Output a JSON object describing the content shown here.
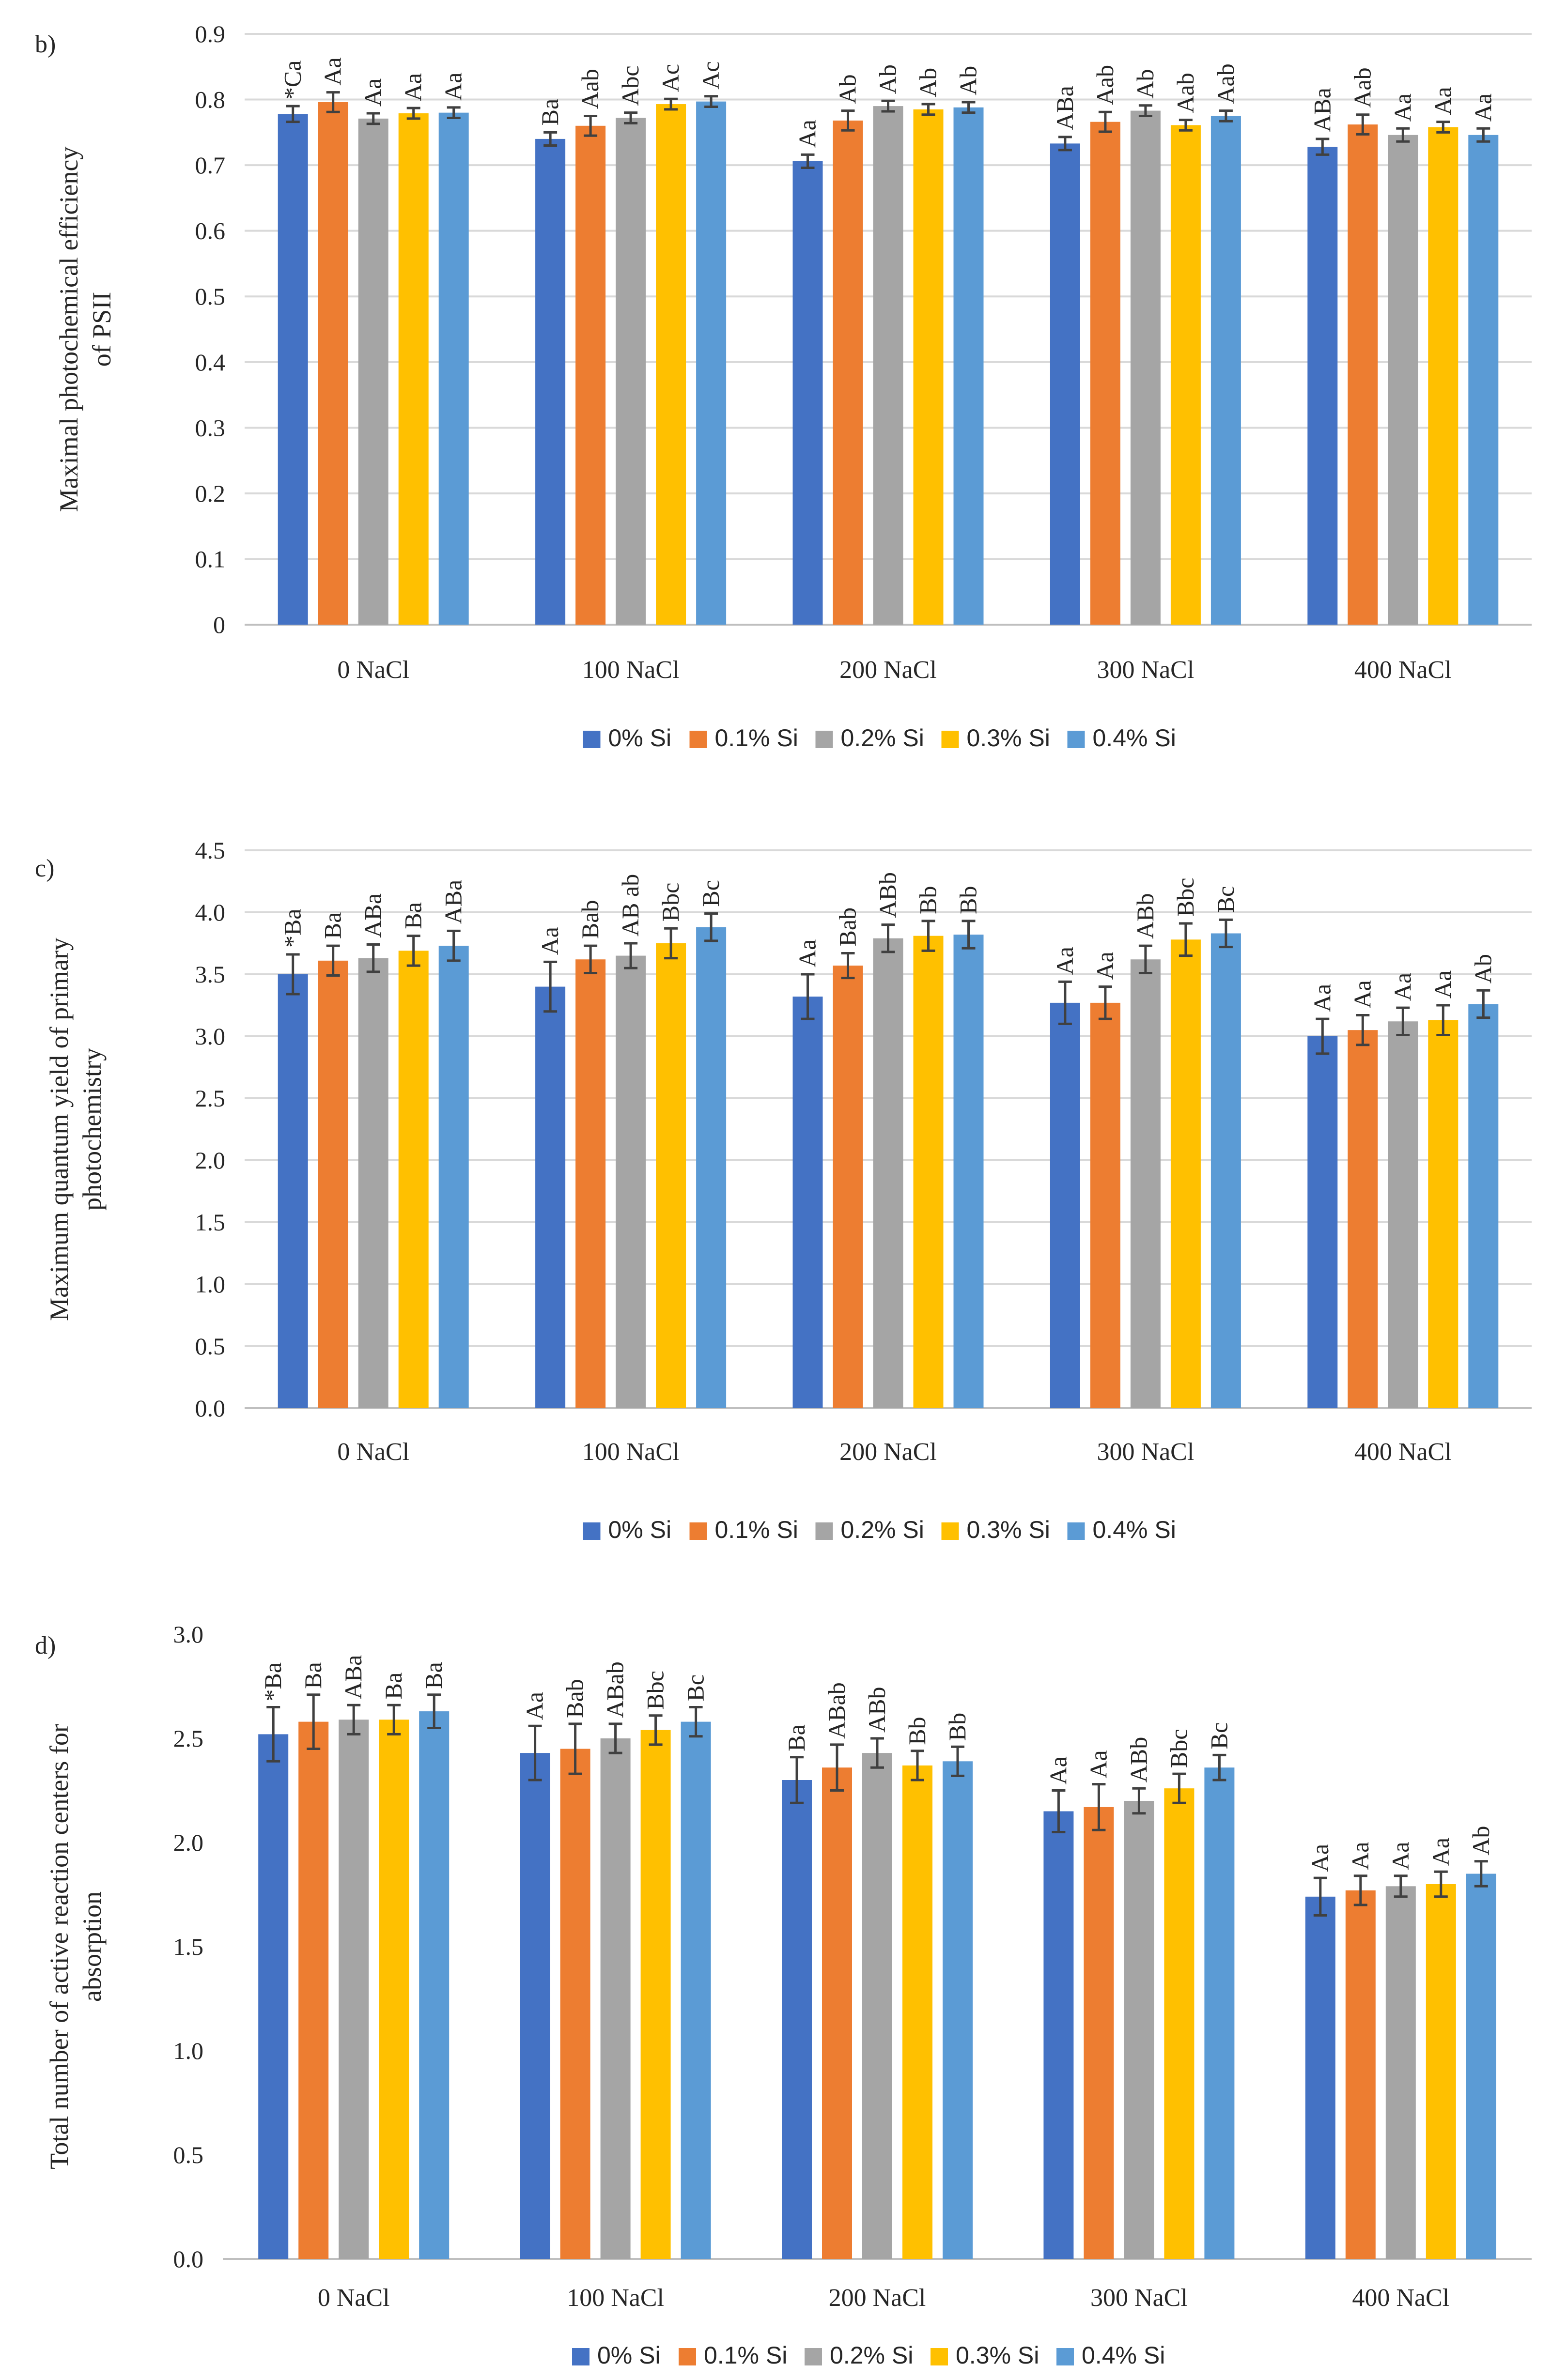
{
  "figure": {
    "colors": {
      "series": [
        "#4472C4",
        "#ED7D31",
        "#A5A5A5",
        "#FFC000",
        "#5B9BD5"
      ],
      "grid": "#D9D9D9",
      "errorbar": "#404040",
      "text": "#262626"
    }
  },
  "chart_data": [
    {
      "panel": "b)",
      "type": "bar",
      "ylabel": [
        "Maximal photochemical efficiency",
        "of PSII"
      ],
      "ylim": [
        0,
        0.9
      ],
      "yticks": [
        0,
        0.1,
        0.2,
        0.3,
        0.4,
        0.5,
        0.6,
        0.7,
        0.8,
        0.9
      ],
      "tick_labels": [
        "0",
        "0.1",
        "0.2",
        "0.3",
        "0.4",
        "0.5",
        "0.6",
        "0.7",
        "0.8",
        "0.9"
      ],
      "grid": true,
      "legend_position": "bottom",
      "categories": [
        "0 NaCl",
        "100 NaCl",
        "200 NaCl",
        "300 NaCl",
        "400 NaCl"
      ],
      "series": [
        {
          "name": "0% Si",
          "values": [
            0.778,
            0.74,
            0.706,
            0.733,
            0.728
          ],
          "errors": [
            0.012,
            0.01,
            0.01,
            0.01,
            0.012
          ],
          "labels": [
            "*Ca",
            "Ba",
            "Aa",
            "ABa",
            "ABa"
          ]
        },
        {
          "name": "0.1% Si",
          "values": [
            0.796,
            0.76,
            0.768,
            0.766,
            0.762
          ],
          "errors": [
            0.015,
            0.015,
            0.015,
            0.015,
            0.015
          ],
          "labels": [
            "Aa",
            "Aab",
            "Ab",
            "Aab",
            "Aab"
          ]
        },
        {
          "name": "0.2% Si",
          "values": [
            0.771,
            0.772,
            0.79,
            0.783,
            0.746
          ],
          "errors": [
            0.008,
            0.008,
            0.008,
            0.008,
            0.01
          ],
          "labels": [
            "Aa",
            "Abc",
            "Ab",
            "Ab",
            "Aa"
          ]
        },
        {
          "name": "0.3% Si",
          "values": [
            0.779,
            0.793,
            0.785,
            0.761,
            0.758
          ],
          "errors": [
            0.008,
            0.008,
            0.008,
            0.008,
            0.008
          ],
          "labels": [
            "Aa",
            "Ac",
            "Ab",
            "Aab",
            "Aa"
          ]
        },
        {
          "name": "0.4% Si",
          "values": [
            0.78,
            0.797,
            0.788,
            0.775,
            0.746
          ],
          "errors": [
            0.008,
            0.008,
            0.008,
            0.008,
            0.01
          ],
          "labels": [
            "Aa",
            "Ac",
            "Ab",
            "Aab",
            "Aa"
          ]
        }
      ]
    },
    {
      "panel": "c)",
      "type": "bar",
      "ylabel": [
        "Maximum quantum yield of primary",
        "photochemistry"
      ],
      "ylim": [
        0,
        4.5
      ],
      "yticks": [
        0,
        0.5,
        1.0,
        1.5,
        2.0,
        2.5,
        3.0,
        3.5,
        4.0,
        4.5
      ],
      "tick_labels": [
        "0.0",
        "0.5",
        "1.0",
        "1.5",
        "2.0",
        "2.5",
        "3.0",
        "3.5",
        "4.0",
        "4.5"
      ],
      "grid": true,
      "legend_position": "bottom",
      "categories": [
        "0 NaCl",
        "100 NaCl",
        "200 NaCl",
        "300 NaCl",
        "400 NaCl"
      ],
      "series": [
        {
          "name": "0% Si",
          "values": [
            3.5,
            3.4,
            3.32,
            3.27,
            3.0
          ],
          "errors": [
            0.16,
            0.2,
            0.18,
            0.17,
            0.14
          ],
          "labels": [
            "*Ba",
            "Aa",
            "Aa",
            "Aa",
            "Aa"
          ]
        },
        {
          "name": "0.1% Si",
          "values": [
            3.61,
            3.62,
            3.57,
            3.27,
            3.05
          ],
          "errors": [
            0.12,
            0.11,
            0.1,
            0.13,
            0.12
          ],
          "labels": [
            "Ba",
            "Bab",
            "Bab",
            "Aa",
            "Aa"
          ]
        },
        {
          "name": "0.2% Si",
          "values": [
            3.63,
            3.65,
            3.79,
            3.62,
            3.12
          ],
          "errors": [
            0.11,
            0.1,
            0.11,
            0.11,
            0.11
          ],
          "labels": [
            "ABa",
            "AB ab",
            "ABb",
            "ABb",
            "Aa"
          ]
        },
        {
          "name": "0.3% Si",
          "values": [
            3.69,
            3.75,
            3.81,
            3.78,
            3.13
          ],
          "errors": [
            0.12,
            0.12,
            0.12,
            0.13,
            0.12
          ],
          "labels": [
            "Ba",
            "Bbc",
            "Bb",
            "Bbc",
            "Aa"
          ]
        },
        {
          "name": "0.4% Si",
          "values": [
            3.73,
            3.88,
            3.82,
            3.83,
            3.26
          ],
          "errors": [
            0.12,
            0.11,
            0.11,
            0.11,
            0.11
          ],
          "labels": [
            "ABa",
            "Bc",
            "Bb",
            "Bc",
            "Ab"
          ]
        }
      ]
    },
    {
      "panel": "d)",
      "type": "bar",
      "ylabel": [
        "Total number of active reaction centers for",
        "absorption"
      ],
      "ylim": [
        0,
        3.0
      ],
      "yticks": [
        0,
        0.5,
        1.0,
        1.5,
        2.0,
        2.5,
        3.0
      ],
      "tick_labels": [
        "0.0",
        "0.5",
        "1.0",
        "1.5",
        "2.0",
        "2.5",
        "3.0"
      ],
      "grid": false,
      "legend_position": "bottom",
      "categories": [
        "0 NaCl",
        "100 NaCl",
        "200 NaCl",
        "300 NaCl",
        "400 NaCl"
      ],
      "series": [
        {
          "name": "0% Si",
          "values": [
            2.52,
            2.43,
            2.3,
            2.15,
            1.74
          ],
          "errors": [
            0.13,
            0.13,
            0.11,
            0.1,
            0.09
          ],
          "labels": [
            "*Ba",
            "Aa",
            "Ba",
            "Aa",
            "Aa"
          ]
        },
        {
          "name": "0.1% Si",
          "values": [
            2.58,
            2.45,
            2.36,
            2.17,
            1.77
          ],
          "errors": [
            0.13,
            0.12,
            0.11,
            0.11,
            0.07
          ],
          "labels": [
            "Ba",
            "Bab",
            "ABab",
            "Aa",
            "Aa"
          ]
        },
        {
          "name": "0.2% Si",
          "values": [
            2.59,
            2.5,
            2.43,
            2.2,
            1.79
          ],
          "errors": [
            0.07,
            0.07,
            0.07,
            0.06,
            0.05
          ],
          "labels": [
            "ABa",
            "ABab",
            "ABb",
            "ABb",
            "Aa"
          ]
        },
        {
          "name": "0.3% Si",
          "values": [
            2.59,
            2.54,
            2.37,
            2.26,
            1.8
          ],
          "errors": [
            0.07,
            0.07,
            0.07,
            0.07,
            0.06
          ],
          "labels": [
            "Ba",
            "Bbc",
            "Bb",
            "Bbc",
            "Aa"
          ]
        },
        {
          "name": "0.4% Si",
          "values": [
            2.63,
            2.58,
            2.39,
            2.36,
            1.85
          ],
          "errors": [
            0.08,
            0.07,
            0.07,
            0.06,
            0.06
          ],
          "labels": [
            "Ba",
            "Bc",
            "Bb",
            "Bc",
            "Ab"
          ]
        }
      ]
    }
  ]
}
